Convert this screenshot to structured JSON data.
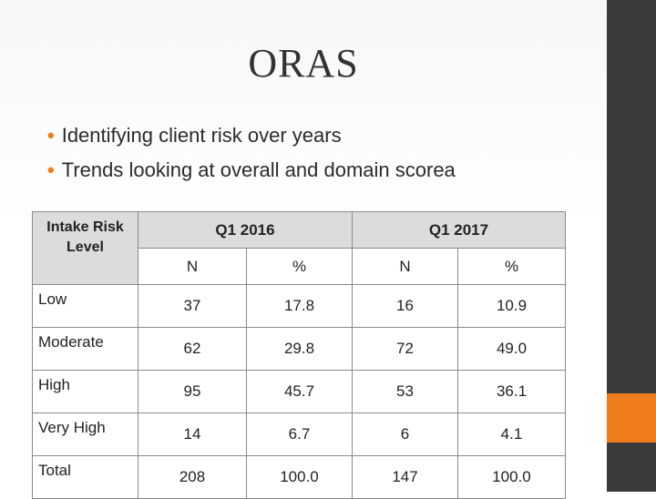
{
  "slide": {
    "title": "ORAS",
    "bullets": [
      "Identifying client risk over years",
      "Trends looking at overall and domain scorea"
    ],
    "colors": {
      "accent": "#ef7c1a",
      "sidebar": "#3a3a3a",
      "header_fill": "#dcdcdc"
    }
  },
  "table": {
    "corner_header": "Intake Risk Level",
    "group_headers": [
      "Q1 2016",
      "Q1 2017"
    ],
    "sub_headers": [
      "N",
      "%",
      "N",
      "%"
    ],
    "rows": [
      {
        "label": "Low",
        "values": [
          "37",
          "17.8",
          "16",
          "10.9"
        ]
      },
      {
        "label": "Moderate",
        "values": [
          "62",
          "29.8",
          "72",
          "49.0"
        ]
      },
      {
        "label": "High",
        "values": [
          "95",
          "45.7",
          "53",
          "36.1"
        ]
      },
      {
        "label": "Very High",
        "values": [
          "14",
          "6.7",
          "6",
          "4.1"
        ]
      },
      {
        "label": "Total",
        "values": [
          "208",
          "100.0",
          "147",
          "100.0"
        ]
      }
    ]
  }
}
